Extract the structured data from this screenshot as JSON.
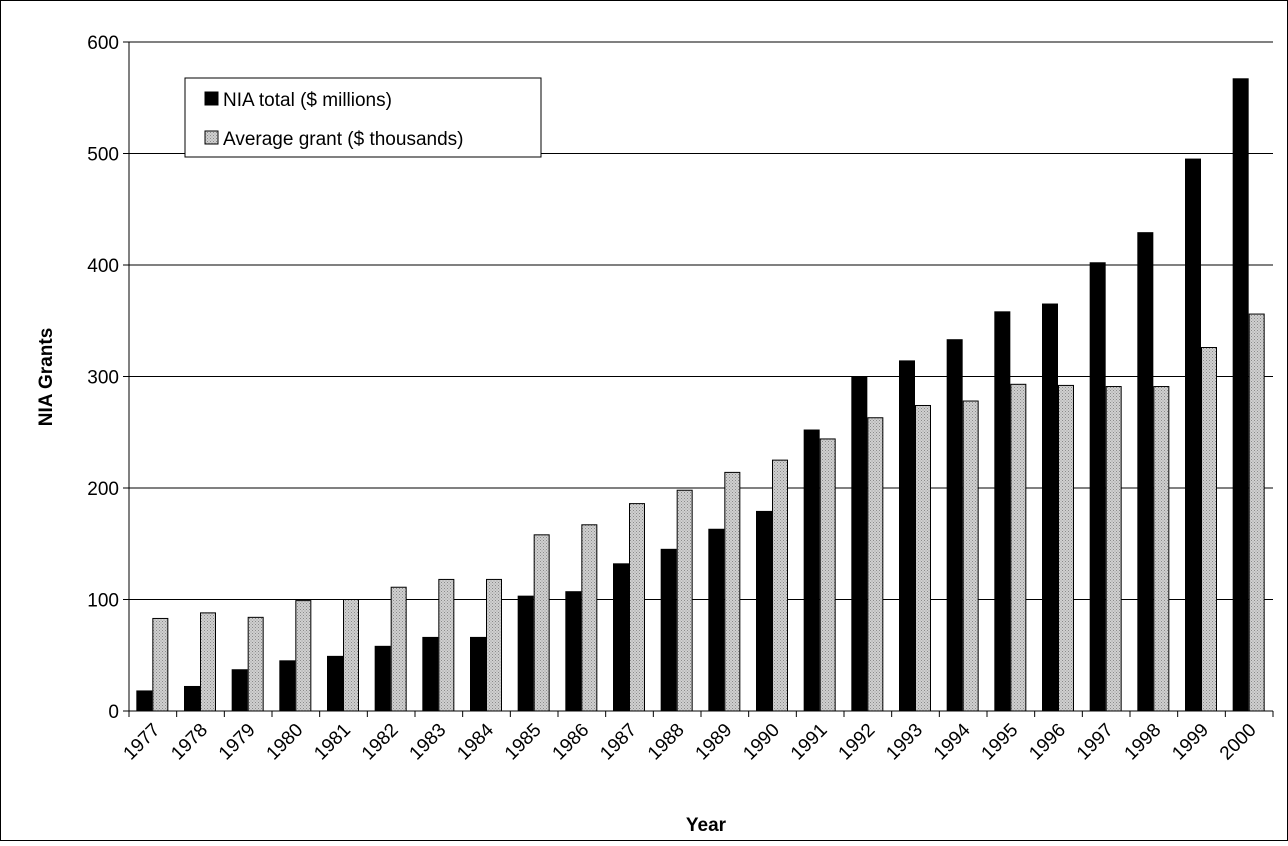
{
  "chart_data": {
    "type": "bar",
    "title": "",
    "xlabel": "Year",
    "ylabel": "NIA Grants",
    "ylim": [
      0,
      600
    ],
    "yticks": [
      "0",
      "100",
      "200",
      "300",
      "400",
      "500",
      "600"
    ],
    "grid": "horizontal",
    "legend_position": "top-left",
    "categories": [
      "1977",
      "1978",
      "1979",
      "1980",
      "1981",
      "1982",
      "1983",
      "1984",
      "1985",
      "1986",
      "1987",
      "1988",
      "1989",
      "1990",
      "1991",
      "1992",
      "1993",
      "1994",
      "1995",
      "1996",
      "1997",
      "1998",
      "1999",
      "2000"
    ],
    "series": [
      {
        "name": "NIA total ($ millions)",
        "color": "#000000",
        "pattern": "solid",
        "values": [
          18,
          22,
          37,
          45,
          49,
          58,
          66,
          66,
          103,
          107,
          132,
          145,
          163,
          179,
          252,
          300,
          314,
          333,
          358,
          365,
          402,
          429,
          495,
          567
        ]
      },
      {
        "name": "Average grant ($ thousands)",
        "color": "#c8c8c8",
        "pattern": "dotted-gray",
        "values": [
          83,
          88,
          84,
          99,
          100,
          111,
          118,
          118,
          158,
          167,
          186,
          198,
          214,
          225,
          244,
          263,
          274,
          278,
          293,
          292,
          291,
          291,
          326,
          356
        ]
      }
    ]
  }
}
